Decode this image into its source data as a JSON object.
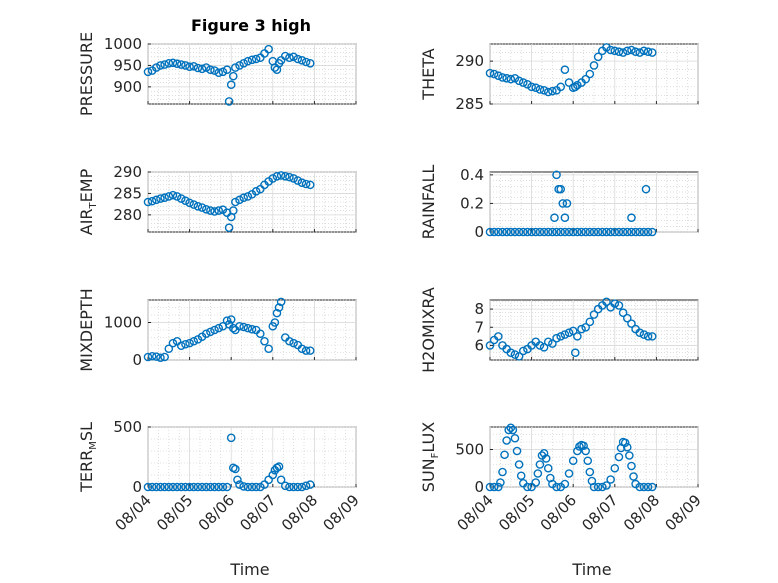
{
  "figure_title": "Figure 3 high",
  "colors": {
    "series": "#0072BD",
    "axes": "#262626",
    "grid": "#d9d9d9"
  },
  "chart_data": [
    {
      "id": "pressure",
      "type": "scatter",
      "ylabel": "PRESSURE",
      "ylabel_sub": "",
      "ylabel_tail": "",
      "ylim": [
        860,
        1000
      ],
      "yticks": [
        900,
        950,
        1000
      ],
      "xlim": [
        0,
        5
      ],
      "xticks": [
        "08/04",
        "08/05",
        "08/06",
        "08/07",
        "08/08",
        "08/09"
      ],
      "show_xticklabels": false,
      "xlabel": "",
      "grid": true,
      "x": [
        0.0,
        0.1,
        0.2,
        0.3,
        0.4,
        0.5,
        0.6,
        0.7,
        0.8,
        0.9,
        1.0,
        1.1,
        1.2,
        1.3,
        1.4,
        1.5,
        1.6,
        1.7,
        1.8,
        1.9,
        1.95,
        2.0,
        2.05,
        2.1,
        2.2,
        2.3,
        2.4,
        2.5,
        2.6,
        2.7,
        2.8,
        2.9,
        3.0,
        3.05,
        3.1,
        3.15,
        3.2,
        3.3,
        3.4,
        3.5,
        3.6,
        3.7,
        3.8,
        3.9
      ],
      "y": [
        935,
        938,
        945,
        950,
        952,
        955,
        956,
        954,
        952,
        950,
        947,
        948,
        944,
        942,
        945,
        940,
        938,
        933,
        935,
        940,
        866,
        905,
        925,
        945,
        950,
        955,
        960,
        963,
        965,
        968,
        978,
        988,
        960,
        945,
        940,
        955,
        962,
        972,
        968,
        970,
        965,
        962,
        958,
        955
      ]
    },
    {
      "id": "theta",
      "type": "scatter",
      "ylabel": "THETA",
      "ylabel_sub": "",
      "ylabel_tail": "",
      "ylim": [
        285,
        292
      ],
      "yticks": [
        285,
        290
      ],
      "xlim": [
        0,
        5
      ],
      "xticks": [
        "08/04",
        "08/05",
        "08/06",
        "08/07",
        "08/08",
        "08/09"
      ],
      "show_xticklabels": false,
      "xlabel": "",
      "grid": true,
      "x": [
        0.0,
        0.1,
        0.2,
        0.3,
        0.4,
        0.5,
        0.6,
        0.7,
        0.8,
        0.9,
        1.0,
        1.1,
        1.2,
        1.3,
        1.4,
        1.5,
        1.6,
        1.7,
        1.8,
        1.9,
        2.0,
        2.05,
        2.1,
        2.2,
        2.3,
        2.4,
        2.5,
        2.6,
        2.7,
        2.8,
        2.9,
        3.0,
        3.1,
        3.2,
        3.3,
        3.4,
        3.5,
        3.6,
        3.7,
        3.8,
        3.9
      ],
      "y": [
        288.6,
        288.5,
        288.3,
        288.1,
        288.0,
        287.9,
        288.0,
        287.7,
        287.5,
        287.3,
        287.0,
        286.9,
        286.7,
        286.6,
        286.4,
        286.5,
        286.6,
        287.0,
        289.0,
        287.5,
        286.9,
        287.0,
        287.2,
        287.5,
        287.9,
        288.5,
        289.5,
        290.5,
        291.2,
        291.6,
        291.3,
        291.2,
        291.1,
        291.0,
        291.2,
        291.3,
        291.1,
        291.0,
        291.2,
        291.1,
        291.0
      ]
    },
    {
      "id": "air-temp",
      "type": "scatter",
      "ylabel": "AIR",
      "ylabel_sub": "T",
      "ylabel_tail": "EMP",
      "ylim": [
        276,
        290
      ],
      "yticks": [
        280,
        285,
        290
      ],
      "xlim": [
        0,
        5
      ],
      "xticks": [
        "08/04",
        "08/05",
        "08/06",
        "08/07",
        "08/08",
        "08/09"
      ],
      "show_xticklabels": false,
      "xlabel": "",
      "grid": true,
      "x": [
        0.0,
        0.1,
        0.2,
        0.3,
        0.4,
        0.5,
        0.6,
        0.7,
        0.8,
        0.9,
        1.0,
        1.1,
        1.2,
        1.3,
        1.4,
        1.5,
        1.6,
        1.7,
        1.8,
        1.9,
        1.95,
        2.0,
        2.05,
        2.1,
        2.2,
        2.3,
        2.4,
        2.5,
        2.6,
        2.7,
        2.8,
        2.9,
        3.0,
        3.1,
        3.2,
        3.3,
        3.4,
        3.5,
        3.6,
        3.7,
        3.8,
        3.9
      ],
      "y": [
        283.0,
        283.2,
        283.5,
        283.8,
        284.0,
        284.3,
        284.6,
        284.3,
        283.8,
        283.3,
        282.8,
        282.4,
        282.0,
        281.7,
        281.3,
        281.0,
        280.8,
        281.0,
        281.2,
        280.5,
        277.0,
        279.5,
        281.0,
        283.0,
        283.5,
        284.0,
        284.3,
        284.8,
        285.5,
        286.0,
        287.0,
        287.8,
        288.5,
        289.0,
        289.2,
        289.0,
        288.8,
        288.5,
        288.0,
        287.5,
        287.2,
        287.0
      ]
    },
    {
      "id": "rainfall",
      "type": "scatter",
      "ylabel": "RAINFALL",
      "ylabel_sub": "",
      "ylabel_tail": "",
      "ylim": [
        0,
        0.42
      ],
      "yticks": [
        0,
        0.2,
        0.4
      ],
      "xlim": [
        0,
        5
      ],
      "xticks": [
        "08/04",
        "08/05",
        "08/06",
        "08/07",
        "08/08",
        "08/09"
      ],
      "show_xticklabels": false,
      "xlabel": "",
      "grid": true,
      "x": [
        0.0,
        0.1,
        0.2,
        0.3,
        0.4,
        0.5,
        0.6,
        0.7,
        0.8,
        0.9,
        1.0,
        1.1,
        1.2,
        1.3,
        1.4,
        1.5,
        1.6,
        1.7,
        1.8,
        1.9,
        2.0,
        2.1,
        2.2,
        2.3,
        2.4,
        2.5,
        2.6,
        2.7,
        2.8,
        2.9,
        3.0,
        3.1,
        3.2,
        3.3,
        3.4,
        3.5,
        3.6,
        3.7,
        3.8,
        3.9,
        1.55,
        1.6,
        1.65,
        1.7,
        1.75,
        1.8,
        1.85,
        3.4,
        3.75
      ],
      "y": [
        0,
        0,
        0,
        0,
        0,
        0,
        0,
        0,
        0,
        0,
        0,
        0,
        0,
        0,
        0,
        0,
        0,
        0,
        0,
        0,
        0,
        0,
        0,
        0,
        0,
        0,
        0,
        0,
        0,
        0,
        0,
        0,
        0,
        0,
        0,
        0,
        0,
        0,
        0,
        0,
        0.1,
        0.4,
        0.3,
        0.3,
        0.2,
        0.1,
        0.2,
        0.1,
        0.3
      ]
    },
    {
      "id": "mixdepth",
      "type": "scatter",
      "ylabel": "MIXDEPTH",
      "ylabel_sub": "",
      "ylabel_tail": "",
      "ylim": [
        0,
        1600
      ],
      "yticks": [
        0,
        1000
      ],
      "xlim": [
        0,
        5
      ],
      "xticks": [
        "08/04",
        "08/05",
        "08/06",
        "08/07",
        "08/08",
        "08/09"
      ],
      "show_xticklabels": false,
      "xlabel": "",
      "grid": true,
      "x": [
        0.0,
        0.1,
        0.2,
        0.3,
        0.4,
        0.5,
        0.6,
        0.7,
        0.8,
        0.9,
        1.0,
        1.1,
        1.2,
        1.3,
        1.4,
        1.5,
        1.6,
        1.7,
        1.8,
        1.9,
        1.95,
        2.0,
        2.05,
        2.1,
        2.2,
        2.3,
        2.4,
        2.5,
        2.6,
        2.7,
        2.8,
        2.9,
        3.0,
        3.05,
        3.1,
        3.15,
        3.2,
        3.3,
        3.4,
        3.5,
        3.6,
        3.7,
        3.8,
        3.9
      ],
      "y": [
        80,
        100,
        90,
        60,
        80,
        300,
        450,
        500,
        380,
        420,
        450,
        500,
        550,
        620,
        700,
        750,
        800,
        850,
        900,
        1050,
        950,
        1080,
        850,
        800,
        900,
        880,
        850,
        820,
        800,
        700,
        500,
        300,
        900,
        1000,
        1250,
        1400,
        1550,
        600,
        500,
        450,
        400,
        300,
        250,
        250
      ]
    },
    {
      "id": "h2omixra",
      "type": "scatter",
      "ylabel": "H2OMIXRA",
      "ylabel_sub": "",
      "ylabel_tail": "",
      "ylim": [
        5.2,
        8.5
      ],
      "yticks": [
        6,
        7,
        8
      ],
      "xlim": [
        0,
        5
      ],
      "xticks": [
        "08/04",
        "08/05",
        "08/06",
        "08/07",
        "08/08",
        "08/09"
      ],
      "show_xticklabels": false,
      "xlabel": "",
      "grid": true,
      "x": [
        0.0,
        0.1,
        0.2,
        0.3,
        0.4,
        0.5,
        0.6,
        0.7,
        0.8,
        0.9,
        1.0,
        1.1,
        1.2,
        1.3,
        1.4,
        1.5,
        1.6,
        1.7,
        1.8,
        1.9,
        2.0,
        2.05,
        2.1,
        2.2,
        2.3,
        2.4,
        2.5,
        2.6,
        2.7,
        2.8,
        2.9,
        3.0,
        3.1,
        3.2,
        3.3,
        3.4,
        3.5,
        3.6,
        3.7,
        3.8,
        3.9
      ],
      "y": [
        6.0,
        6.3,
        6.5,
        6.0,
        5.8,
        5.6,
        5.5,
        5.4,
        5.7,
        5.8,
        6.0,
        6.2,
        6.0,
        5.9,
        6.2,
        6.1,
        6.4,
        6.5,
        6.6,
        6.7,
        6.8,
        5.6,
        6.5,
        6.9,
        7.0,
        7.3,
        7.7,
        8.0,
        8.2,
        8.4,
        8.1,
        8.3,
        8.2,
        7.8,
        7.5,
        7.2,
        6.9,
        6.7,
        6.6,
        6.5,
        6.5
      ]
    },
    {
      "id": "terr-msl",
      "type": "scatter",
      "ylabel": "TERR",
      "ylabel_sub": "M",
      "ylabel_tail": "SL",
      "ylim": [
        0,
        500
      ],
      "yticks": [
        0,
        500
      ],
      "xlim": [
        0,
        5
      ],
      "xticks": [
        "08/04",
        "08/05",
        "08/06",
        "08/07",
        "08/08",
        "08/09"
      ],
      "show_xticklabels": true,
      "xlabel": "Time",
      "grid": true,
      "x": [
        0.0,
        0.1,
        0.2,
        0.3,
        0.4,
        0.5,
        0.6,
        0.7,
        0.8,
        0.9,
        1.0,
        1.1,
        1.2,
        1.3,
        1.4,
        1.5,
        1.6,
        1.7,
        1.8,
        1.9,
        2.0,
        2.05,
        2.1,
        2.15,
        2.2,
        2.3,
        2.4,
        2.5,
        2.6,
        2.7,
        2.8,
        2.9,
        3.0,
        3.05,
        3.1,
        3.15,
        3.2,
        3.3,
        3.4,
        3.5,
        3.6,
        3.7,
        3.8,
        3.9
      ],
      "y": [
        0,
        0,
        0,
        0,
        0,
        0,
        0,
        0,
        0,
        0,
        0,
        0,
        0,
        0,
        0,
        0,
        0,
        0,
        0,
        0,
        410,
        160,
        150,
        60,
        20,
        5,
        0,
        0,
        0,
        0,
        20,
        60,
        100,
        140,
        160,
        170,
        60,
        10,
        0,
        0,
        0,
        0,
        10,
        20
      ]
    },
    {
      "id": "sun-flux",
      "type": "scatter",
      "ylabel": "SUN",
      "ylabel_sub": "F",
      "ylabel_tail": "LUX",
      "ylim": [
        0,
        800
      ],
      "yticks": [
        0,
        500
      ],
      "xlim": [
        0,
        5
      ],
      "xticks": [
        "08/04",
        "08/05",
        "08/06",
        "08/07",
        "08/08",
        "08/09"
      ],
      "show_xticklabels": true,
      "xlabel": "Time",
      "grid": true,
      "x": [
        0.0,
        0.1,
        0.2,
        0.25,
        0.3,
        0.35,
        0.4,
        0.45,
        0.5,
        0.55,
        0.6,
        0.65,
        0.7,
        0.75,
        0.8,
        0.9,
        1.0,
        1.1,
        1.15,
        1.2,
        1.25,
        1.3,
        1.35,
        1.4,
        1.45,
        1.5,
        1.6,
        1.7,
        1.8,
        1.9,
        2.0,
        2.1,
        2.15,
        2.2,
        2.25,
        2.3,
        2.35,
        2.4,
        2.45,
        2.5,
        2.6,
        2.7,
        2.8,
        2.9,
        3.0,
        3.1,
        3.15,
        3.2,
        3.25,
        3.3,
        3.35,
        3.4,
        3.45,
        3.5,
        3.6,
        3.7,
        3.8,
        3.9
      ],
      "y": [
        0,
        0,
        0,
        60,
        200,
        430,
        620,
        760,
        790,
        760,
        650,
        480,
        300,
        150,
        50,
        0,
        0,
        60,
        180,
        300,
        420,
        450,
        380,
        250,
        120,
        40,
        0,
        0,
        40,
        180,
        350,
        480,
        540,
        560,
        550,
        480,
        350,
        200,
        80,
        0,
        0,
        0,
        20,
        100,
        250,
        400,
        520,
        600,
        590,
        530,
        420,
        280,
        140,
        40,
        0,
        0,
        0,
        0
      ]
    }
  ]
}
